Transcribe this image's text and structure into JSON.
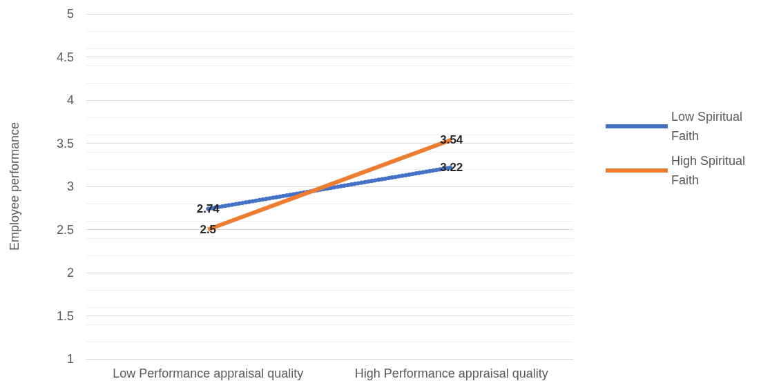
{
  "chart_data": {
    "type": "line",
    "ylabel": "Employee performance",
    "categories": [
      "Low Performance appraisal quality",
      "High Performance appraisal quality"
    ],
    "series": [
      {
        "name": "Low Spiritual Faith",
        "color": "#4472c4",
        "values": [
          2.74,
          3.22
        ],
        "line_style": "dotted"
      },
      {
        "name": "High Spiritual Faith",
        "color": "#ed7d31",
        "values": [
          2.5,
          3.54
        ],
        "line_style": "solid"
      }
    ],
    "ylim": [
      1,
      5
    ],
    "yticks": [
      1,
      1.5,
      2,
      2.5,
      3,
      3.5,
      4,
      4.5,
      5
    ],
    "grid": "y",
    "legend": "right",
    "data_labels": true,
    "marker": "none"
  }
}
